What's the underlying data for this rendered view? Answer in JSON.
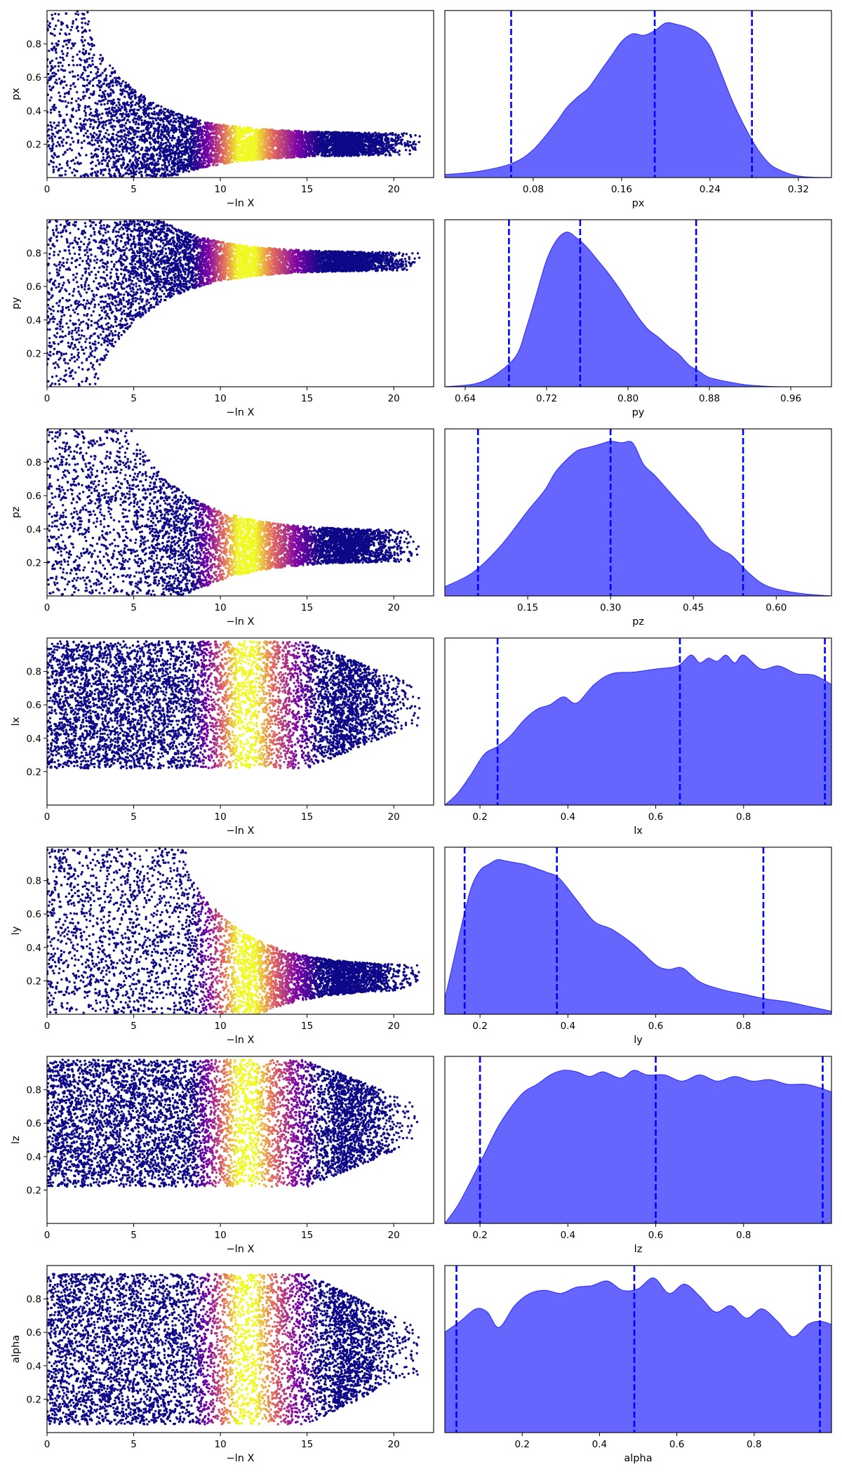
{
  "colors": {
    "cold": "#0d0887",
    "mid": "#7e03a8",
    "warm": "#e56b5d",
    "hot": "#f0f921",
    "posterior_fill": "#0000ff",
    "posterior_fill_opacity": 0.6,
    "quantile_line": "#0000ff"
  },
  "chart_data": [
    {
      "panel": "trace",
      "type": "scatter",
      "param": "px",
      "xlabel": "−ln X",
      "ylabel": "px",
      "xlim": [
        0,
        22.3
      ],
      "ylim": [
        0,
        1
      ],
      "xticks": [
        0,
        5,
        10,
        15,
        20
      ],
      "xticklabels": [
        "0",
        "5",
        "10",
        "15",
        "20"
      ],
      "yticks": [
        0.2,
        0.4,
        0.6,
        0.8
      ],
      "yticklabels": [
        "0.2",
        "0.4",
        "0.6",
        "0.8"
      ],
      "center": 0.2,
      "tail_half_width": 0.05,
      "cutoff_x": 2.5,
      "max_x": 21.5
    },
    {
      "panel": "posterior",
      "type": "area",
      "param": "px",
      "xlabel": "px",
      "xlim": [
        0.0,
        0.35
      ],
      "xticks": [
        0.08,
        0.16,
        0.24,
        0.32
      ],
      "xticklabels": [
        "0.08",
        "0.16",
        "0.24",
        "0.32"
      ],
      "quantiles": [
        0.06,
        0.19,
        0.278
      ],
      "x": [
        0.0,
        0.03,
        0.06,
        0.08,
        0.1,
        0.11,
        0.12,
        0.13,
        0.14,
        0.15,
        0.16,
        0.17,
        0.18,
        0.19,
        0.2,
        0.21,
        0.22,
        0.23,
        0.24,
        0.25,
        0.26,
        0.27,
        0.28,
        0.29,
        0.3,
        0.32,
        0.35
      ],
      "y": [
        0.02,
        0.04,
        0.09,
        0.18,
        0.35,
        0.45,
        0.52,
        0.58,
        0.68,
        0.78,
        0.88,
        0.93,
        0.92,
        0.95,
        1.0,
        0.99,
        0.97,
        0.93,
        0.85,
        0.68,
        0.5,
        0.35,
        0.22,
        0.12,
        0.06,
        0.01,
        0.0
      ]
    },
    {
      "panel": "trace",
      "type": "scatter",
      "param": "py",
      "xlabel": "−ln X",
      "ylabel": "py",
      "xlim": [
        0,
        22.3
      ],
      "ylim": [
        0,
        1
      ],
      "xticks": [
        0,
        5,
        10,
        15,
        20
      ],
      "xticklabels": [
        "0",
        "5",
        "10",
        "15",
        "20"
      ],
      "yticks": [
        0.2,
        0.4,
        0.6,
        0.8
      ],
      "yticklabels": [
        "0.2",
        "0.4",
        "0.6",
        "0.8"
      ],
      "center": 0.75,
      "tail_half_width": 0.04,
      "cutoff_x": 3.0,
      "max_x": 21.5
    },
    {
      "panel": "posterior",
      "type": "area",
      "param": "py",
      "xlabel": "py",
      "xlim": [
        0.62,
        1.0
      ],
      "xticks": [
        0.64,
        0.72,
        0.8,
        0.88,
        0.96
      ],
      "xticklabels": [
        "0.64",
        "0.72",
        "0.80",
        "0.88",
        "0.96"
      ],
      "quantiles": [
        0.683,
        0.753,
        0.867
      ],
      "x": [
        0.62,
        0.65,
        0.67,
        0.69,
        0.7,
        0.71,
        0.72,
        0.73,
        0.74,
        0.75,
        0.76,
        0.77,
        0.78,
        0.79,
        0.8,
        0.81,
        0.82,
        0.83,
        0.84,
        0.85,
        0.86,
        0.87,
        0.88,
        0.9,
        0.92,
        0.95,
        1.0
      ],
      "y": [
        0.0,
        0.02,
        0.08,
        0.2,
        0.38,
        0.6,
        0.82,
        0.95,
        1.0,
        0.96,
        0.9,
        0.82,
        0.74,
        0.65,
        0.55,
        0.45,
        0.37,
        0.32,
        0.26,
        0.21,
        0.14,
        0.1,
        0.06,
        0.03,
        0.01,
        0.0,
        0.0
      ]
    },
    {
      "panel": "trace",
      "type": "scatter",
      "param": "pz",
      "xlabel": "−ln X",
      "ylabel": "pz",
      "xlim": [
        0,
        22.3
      ],
      "ylim": [
        0,
        1
      ],
      "xticks": [
        0,
        5,
        10,
        15,
        20
      ],
      "xticklabels": [
        "0",
        "5",
        "10",
        "15",
        "20"
      ],
      "yticks": [
        0.2,
        0.4,
        0.6,
        0.8
      ],
      "yticklabels": [
        "0.2",
        "0.4",
        "0.6",
        "0.8"
      ],
      "center": 0.3,
      "tail_half_width": 0.07,
      "cutoff_x": 5.0,
      "max_x": 21.5
    },
    {
      "panel": "posterior",
      "type": "area",
      "param": "pz",
      "xlabel": "pz",
      "xlim": [
        0.0,
        0.7
      ],
      "xticks": [
        0.15,
        0.3,
        0.45,
        0.6
      ],
      "xticklabels": [
        "0.15",
        "0.30",
        "0.45",
        "0.60"
      ],
      "quantiles": [
        0.06,
        0.3,
        0.54
      ],
      "x": [
        0.0,
        0.05,
        0.1,
        0.15,
        0.18,
        0.2,
        0.22,
        0.24,
        0.26,
        0.28,
        0.3,
        0.32,
        0.34,
        0.36,
        0.38,
        0.4,
        0.42,
        0.44,
        0.46,
        0.48,
        0.5,
        0.52,
        0.55,
        0.58,
        0.62,
        0.66,
        0.7
      ],
      "y": [
        0.06,
        0.15,
        0.32,
        0.55,
        0.68,
        0.8,
        0.88,
        0.94,
        0.96,
        0.98,
        1.0,
        0.99,
        0.99,
        0.85,
        0.78,
        0.7,
        0.62,
        0.54,
        0.46,
        0.36,
        0.3,
        0.26,
        0.15,
        0.07,
        0.03,
        0.01,
        0.0
      ]
    },
    {
      "panel": "trace",
      "type": "scatter",
      "param": "lx",
      "xlabel": "−ln X",
      "ylabel": "lx",
      "xlim": [
        0,
        22.3
      ],
      "ylim": [
        0,
        1
      ],
      "xticks": [
        0,
        5,
        10,
        15,
        20
      ],
      "xticklabels": [
        "0",
        "5",
        "10",
        "15",
        "20"
      ],
      "yticks": [
        0.2,
        0.4,
        0.6,
        0.8
      ],
      "yticklabels": [
        "0.2",
        "0.4",
        "0.6",
        "0.8"
      ],
      "center": 0.6,
      "tail_half_width": 0.38,
      "cutoff_x": 0,
      "max_x": 21.5
    },
    {
      "panel": "posterior",
      "type": "area",
      "param": "lx",
      "xlabel": "lx",
      "xlim": [
        0.12,
        1.0
      ],
      "xticks": [
        0.2,
        0.4,
        0.6,
        0.8
      ],
      "xticklabels": [
        "0.2",
        "0.4",
        "0.6",
        "0.8"
      ],
      "quantiles": [
        0.24,
        0.655,
        0.985
      ],
      "x": [
        0.12,
        0.15,
        0.18,
        0.21,
        0.24,
        0.27,
        0.3,
        0.33,
        0.36,
        0.39,
        0.42,
        0.46,
        0.5,
        0.55,
        0.6,
        0.65,
        0.68,
        0.7,
        0.72,
        0.74,
        0.76,
        0.78,
        0.8,
        0.84,
        0.88,
        0.92,
        0.96,
        1.0
      ],
      "y": [
        0.0,
        0.08,
        0.2,
        0.33,
        0.38,
        0.45,
        0.55,
        0.62,
        0.65,
        0.7,
        0.66,
        0.78,
        0.85,
        0.86,
        0.88,
        0.9,
        0.97,
        0.92,
        0.95,
        0.93,
        0.97,
        0.92,
        0.97,
        0.88,
        0.9,
        0.85,
        0.84,
        0.78
      ]
    },
    {
      "panel": "trace",
      "type": "scatter",
      "param": "ly",
      "xlabel": "−ln X",
      "ylabel": "ly",
      "xlim": [
        0,
        22.3
      ],
      "ylim": [
        0,
        1
      ],
      "xticks": [
        0,
        5,
        10,
        15,
        20
      ],
      "xticklabels": [
        "0",
        "5",
        "10",
        "15",
        "20"
      ],
      "yticks": [
        0.2,
        0.4,
        0.6,
        0.8
      ],
      "yticklabels": [
        "0.2",
        "0.4",
        "0.6",
        "0.8"
      ],
      "center": 0.22,
      "tail_half_width": 0.05,
      "cutoff_x": 8.0,
      "max_x": 21.5
    },
    {
      "panel": "posterior",
      "type": "area",
      "param": "ly",
      "xlabel": "ly",
      "xlim": [
        0.12,
        1.0
      ],
      "xticks": [
        0.2,
        0.4,
        0.6,
        0.8
      ],
      "xticklabels": [
        "0.2",
        "0.4",
        "0.6",
        "0.8"
      ],
      "quantiles": [
        0.165,
        0.375,
        0.845
      ],
      "x": [
        0.12,
        0.14,
        0.16,
        0.18,
        0.2,
        0.22,
        0.24,
        0.26,
        0.28,
        0.3,
        0.32,
        0.35,
        0.38,
        0.42,
        0.46,
        0.5,
        0.55,
        0.6,
        0.63,
        0.66,
        0.7,
        0.75,
        0.8,
        0.85,
        0.9,
        0.95,
        1.0
      ],
      "y": [
        0.1,
        0.35,
        0.6,
        0.82,
        0.93,
        0.97,
        1.0,
        0.99,
        0.98,
        0.97,
        0.95,
        0.92,
        0.88,
        0.74,
        0.6,
        0.55,
        0.45,
        0.32,
        0.29,
        0.3,
        0.21,
        0.16,
        0.13,
        0.1,
        0.08,
        0.05,
        0.02
      ]
    },
    {
      "panel": "trace",
      "type": "scatter",
      "param": "lz",
      "xlabel": "−ln X",
      "ylabel": "lz",
      "xlim": [
        0,
        22.3
      ],
      "ylim": [
        0,
        1
      ],
      "xticks": [
        0,
        5,
        10,
        15,
        20
      ],
      "xticklabels": [
        "0",
        "5",
        "10",
        "15",
        "20"
      ],
      "yticks": [
        0.2,
        0.4,
        0.6,
        0.8
      ],
      "yticklabels": [
        "0.2",
        "0.4",
        "0.6",
        "0.8"
      ],
      "center": 0.6,
      "tail_half_width": 0.38,
      "cutoff_x": 0,
      "max_x": 21.5
    },
    {
      "panel": "posterior",
      "type": "area",
      "param": "lz",
      "xlabel": "lz",
      "xlim": [
        0.12,
        1.0
      ],
      "xticks": [
        0.2,
        0.4,
        0.6,
        0.8
      ],
      "xticklabels": [
        "0.2",
        "0.4",
        "0.6",
        "0.8"
      ],
      "quantiles": [
        0.2,
        0.6,
        0.98
      ],
      "x": [
        0.12,
        0.15,
        0.18,
        0.21,
        0.24,
        0.27,
        0.3,
        0.33,
        0.36,
        0.39,
        0.42,
        0.45,
        0.48,
        0.52,
        0.55,
        0.58,
        0.62,
        0.66,
        0.7,
        0.74,
        0.78,
        0.82,
        0.86,
        0.9,
        0.94,
        0.97,
        1.0
      ],
      "y": [
        0.0,
        0.12,
        0.28,
        0.45,
        0.62,
        0.75,
        0.85,
        0.9,
        0.96,
        0.99,
        0.98,
        0.95,
        0.98,
        0.94,
        0.99,
        0.96,
        0.96,
        0.92,
        0.96,
        0.92,
        0.95,
        0.92,
        0.93,
        0.9,
        0.9,
        0.88,
        0.85
      ]
    },
    {
      "panel": "trace",
      "type": "scatter",
      "param": "alpha",
      "xlabel": "−ln X",
      "ylabel": "alpha",
      "xlim": [
        0,
        22.3
      ],
      "ylim": [
        0,
        1
      ],
      "xticks": [
        0,
        5,
        10,
        15,
        20
      ],
      "xticklabels": [
        "0",
        "5",
        "10",
        "15",
        "20"
      ],
      "yticks": [
        0.2,
        0.4,
        0.6,
        0.8
      ],
      "yticklabels": [
        "0.2",
        "0.4",
        "0.6",
        "0.8"
      ],
      "center": 0.5,
      "tail_half_width": 0.45,
      "cutoff_x": 0,
      "max_x": 21.5
    },
    {
      "panel": "posterior",
      "type": "area",
      "param": "alpha",
      "xlabel": "alpha",
      "xlim": [
        0.0,
        1.0
      ],
      "xticks": [
        0.2,
        0.4,
        0.6,
        0.8
      ],
      "xticklabels": [
        "0.2",
        "0.4",
        "0.6",
        "0.8"
      ],
      "quantiles": [
        0.03,
        0.49,
        0.97
      ],
      "x": [
        0.0,
        0.04,
        0.08,
        0.11,
        0.14,
        0.18,
        0.22,
        0.26,
        0.3,
        0.34,
        0.38,
        0.42,
        0.46,
        0.5,
        0.54,
        0.58,
        0.62,
        0.66,
        0.7,
        0.74,
        0.78,
        0.82,
        0.86,
        0.9,
        0.94,
        0.97,
        1.0
      ],
      "y": [
        0.65,
        0.72,
        0.8,
        0.78,
        0.68,
        0.82,
        0.9,
        0.92,
        0.9,
        0.94,
        0.95,
        0.98,
        0.92,
        0.93,
        1.0,
        0.9,
        0.96,
        0.88,
        0.78,
        0.82,
        0.74,
        0.8,
        0.72,
        0.62,
        0.7,
        0.72,
        0.7
      ]
    }
  ]
}
